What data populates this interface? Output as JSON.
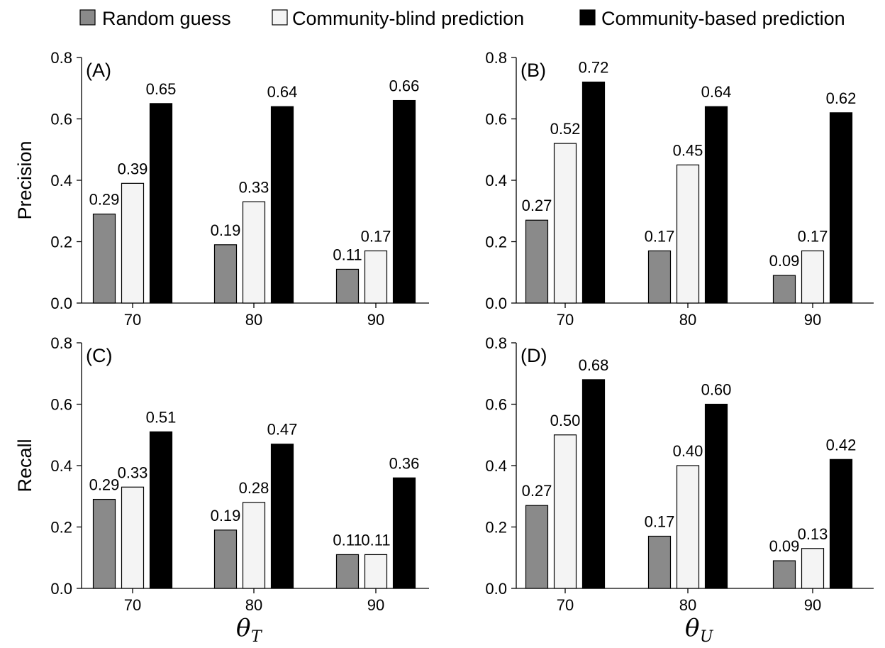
{
  "legend": [
    {
      "label": "Random guess",
      "color": "#8a8a8a"
    },
    {
      "label": "Community-blind prediction",
      "color": "#f4f4f4"
    },
    {
      "label": "Community-based prediction",
      "color": "#000000"
    }
  ],
  "axis_titles": {
    "ylabel_top": "Precision",
    "ylabel_bottom": "Recall",
    "xlabel_left_main": "θ",
    "xlabel_left_sub": "T",
    "xlabel_right_main": "θ",
    "xlabel_right_sub": "U"
  },
  "chart_data": [
    {
      "type": "bar",
      "panel_label": "(A)",
      "categories": [
        "70",
        "80",
        "90"
      ],
      "ylabel": "Precision",
      "ylim": [
        0,
        0.8
      ],
      "yticks": [
        "0.0",
        "0.2",
        "0.4",
        "0.6",
        "0.8"
      ],
      "series": [
        {
          "name": "Random guess",
          "values": [
            0.29,
            0.19,
            0.11
          ],
          "labels": [
            "0.29",
            "0.19",
            "0.11"
          ]
        },
        {
          "name": "Community-blind prediction",
          "values": [
            0.39,
            0.33,
            0.17
          ],
          "labels": [
            "0.39",
            "0.33",
            "0.17"
          ]
        },
        {
          "name": "Community-based prediction",
          "values": [
            0.65,
            0.64,
            0.66
          ],
          "labels": [
            "0.65",
            "0.64",
            "0.66"
          ]
        }
      ]
    },
    {
      "type": "bar",
      "panel_label": "(B)",
      "categories": [
        "70",
        "80",
        "90"
      ],
      "ylabel": "",
      "ylim": [
        0,
        0.8
      ],
      "yticks": [
        "0.0",
        "0.2",
        "0.4",
        "0.6",
        "0.8"
      ],
      "series": [
        {
          "name": "Random guess",
          "values": [
            0.27,
            0.17,
            0.09
          ],
          "labels": [
            "0.27",
            "0.17",
            "0.09"
          ]
        },
        {
          "name": "Community-blind prediction",
          "values": [
            0.52,
            0.45,
            0.17
          ],
          "labels": [
            "0.52",
            "0.45",
            "0.17"
          ]
        },
        {
          "name": "Community-based prediction",
          "values": [
            0.72,
            0.64,
            0.62
          ],
          "labels": [
            "0.72",
            "0.64",
            "0.62"
          ]
        }
      ]
    },
    {
      "type": "bar",
      "panel_label": "(C)",
      "categories": [
        "70",
        "80",
        "90"
      ],
      "ylabel": "Recall",
      "ylim": [
        0,
        0.8
      ],
      "yticks": [
        "0.0",
        "0.2",
        "0.4",
        "0.6",
        "0.8"
      ],
      "series": [
        {
          "name": "Random guess",
          "values": [
            0.29,
            0.19,
            0.11
          ],
          "labels": [
            "0.29",
            "0.19",
            "0.11"
          ]
        },
        {
          "name": "Community-blind prediction",
          "values": [
            0.33,
            0.28,
            0.11
          ],
          "labels": [
            "0.33",
            "0.28",
            "0.11"
          ]
        },
        {
          "name": "Community-based prediction",
          "values": [
            0.51,
            0.47,
            0.36
          ],
          "labels": [
            "0.51",
            "0.47",
            "0.36"
          ]
        }
      ]
    },
    {
      "type": "bar",
      "panel_label": "(D)",
      "categories": [
        "70",
        "80",
        "90"
      ],
      "ylabel": "",
      "ylim": [
        0,
        0.8
      ],
      "yticks": [
        "0.0",
        "0.2",
        "0.4",
        "0.6",
        "0.8"
      ],
      "series": [
        {
          "name": "Random guess",
          "values": [
            0.27,
            0.17,
            0.09
          ],
          "labels": [
            "0.27",
            "0.17",
            "0.09"
          ]
        },
        {
          "name": "Community-blind prediction",
          "values": [
            0.5,
            0.4,
            0.13
          ],
          "labels": [
            "0.50",
            "0.40",
            "0.13"
          ]
        },
        {
          "name": "Community-based prediction",
          "values": [
            0.68,
            0.6,
            0.42
          ],
          "labels": [
            "0.68",
            "0.60",
            "0.42"
          ]
        }
      ]
    }
  ]
}
